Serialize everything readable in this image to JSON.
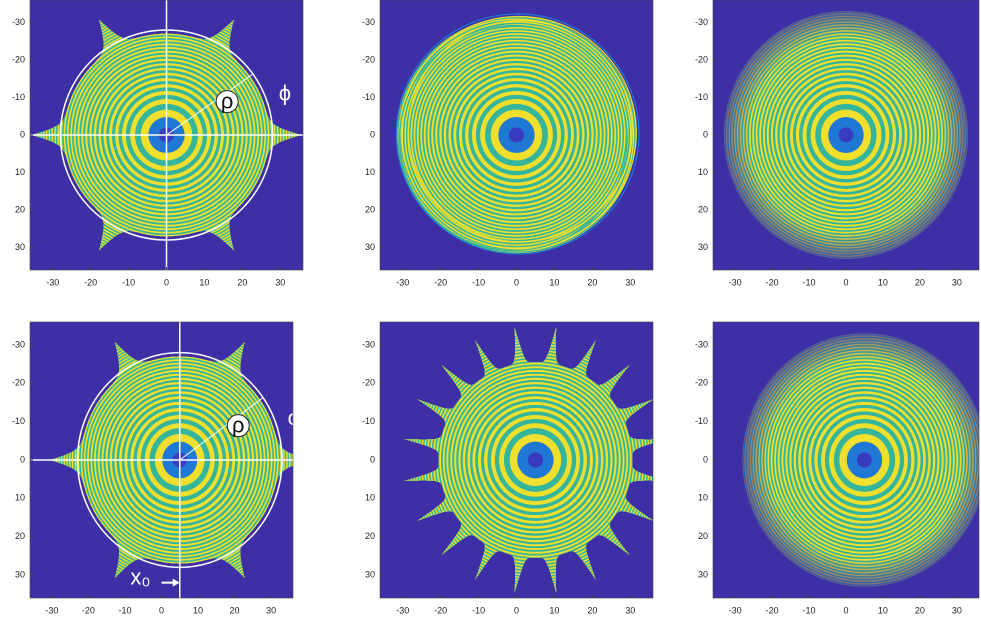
{
  "chart_data": [
    {
      "type": "image",
      "xlim": [
        -36,
        36
      ],
      "ylim": [
        -36,
        36
      ],
      "yreverse": true,
      "xticks": [
        -30,
        -20,
        -10,
        0,
        10,
        20,
        30
      ],
      "yticks": [
        -30,
        -20,
        -10,
        0,
        10,
        20,
        30
      ],
      "annotations": [
        "ρ",
        "ϕ"
      ]
    },
    {
      "type": "image",
      "xlim": [
        -36,
        36
      ],
      "ylim": [
        -36,
        36
      ],
      "yreverse": true,
      "xticks": [
        -30,
        -20,
        -10,
        0,
        10,
        20,
        30
      ],
      "yticks": [
        -30,
        -20,
        -10,
        0,
        10,
        20,
        30
      ]
    },
    {
      "type": "image",
      "xlim": [
        -36,
        36
      ],
      "ylim": [
        -36,
        36
      ],
      "yreverse": true,
      "xticks": [
        -30,
        -20,
        -10,
        0,
        10,
        20,
        30
      ],
      "yticks": [
        -30,
        -20,
        -10,
        0,
        10,
        20,
        30
      ]
    },
    {
      "type": "image",
      "xlim": [
        -36,
        36
      ],
      "ylim": [
        -36,
        36
      ],
      "yreverse": true,
      "xticks": [
        -30,
        -20,
        -10,
        0,
        10,
        20,
        30
      ],
      "yticks": [
        -30,
        -20,
        -10,
        0,
        10,
        20,
        30
      ],
      "annotations": [
        "ρ",
        "ϕ",
        "x₀"
      ]
    },
    {
      "type": "image",
      "xlim": [
        -36,
        36
      ],
      "ylim": [
        -36,
        36
      ],
      "yreverse": true,
      "xticks": [
        -30,
        -20,
        -10,
        0,
        10,
        20,
        30
      ],
      "yticks": [
        -30,
        -20,
        -10,
        0,
        10,
        20,
        30
      ]
    },
    {
      "type": "image",
      "xlim": [
        -36,
        36
      ],
      "ylim": [
        -36,
        36
      ],
      "yreverse": true,
      "xticks": [
        -30,
        -20,
        -10,
        0,
        10,
        20,
        30
      ],
      "yticks": [
        -30,
        -20,
        -10,
        0,
        10,
        20,
        30
      ]
    }
  ]
}
